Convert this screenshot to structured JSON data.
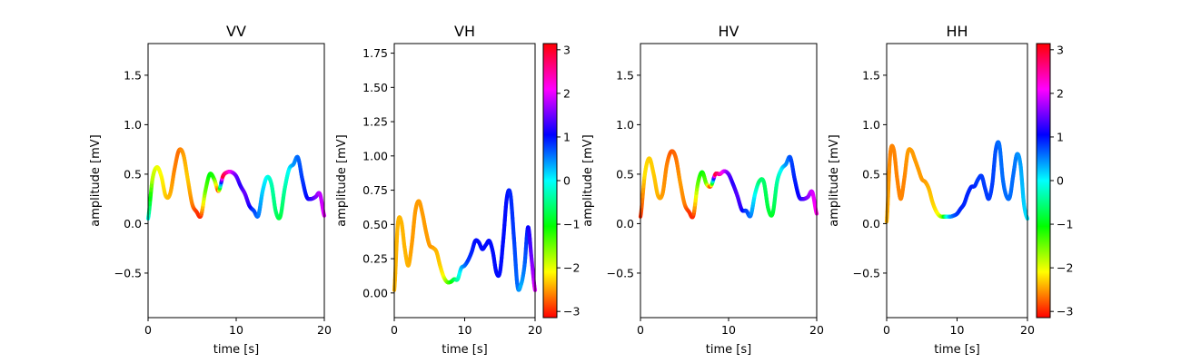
{
  "chart_data": [
    {
      "type": "line",
      "title": "VV",
      "xlabel": "time [s]",
      "ylabel": "amplitude [mV]",
      "xlim": [
        0,
        20
      ],
      "ylim": [
        -0.95,
        1.82
      ],
      "xticks": [
        "0",
        "10",
        "20"
      ],
      "yticks": [
        "−0.5",
        "0.0",
        "0.5",
        "1.0",
        "1.5"
      ],
      "colorbar": false,
      "x": [
        0,
        0.5,
        1,
        1.5,
        2,
        2.5,
        3,
        3.5,
        4,
        4.5,
        5,
        5.5,
        6,
        6.5,
        7,
        7.5,
        8,
        8.5,
        9,
        9.5,
        10,
        10.5,
        11,
        11.5,
        12,
        12.5,
        13,
        13.5,
        14,
        14.5,
        15,
        15.5,
        16,
        16.5,
        17,
        17.5,
        18,
        18.5,
        19,
        19.5,
        20
      ],
      "y": [
        0.05,
        0.45,
        0.57,
        0.48,
        0.28,
        0.3,
        0.55,
        0.74,
        0.7,
        0.45,
        0.2,
        0.12,
        0.08,
        0.33,
        0.5,
        0.45,
        0.33,
        0.48,
        0.52,
        0.52,
        0.48,
        0.38,
        0.3,
        0.18,
        0.13,
        0.08,
        0.33,
        0.47,
        0.4,
        0.12,
        0.07,
        0.35,
        0.55,
        0.6,
        0.67,
        0.45,
        0.27,
        0.25,
        0.27,
        0.3,
        0.08
      ],
      "phase": [
        0,
        -1.8,
        -2.0,
        -2.1,
        -2.3,
        -2.4,
        -2.6,
        -2.7,
        -2.5,
        -2.3,
        -2.6,
        -2.9,
        -3.0,
        -1.5,
        -1.0,
        -1.2,
        -3.0,
        3.0,
        2.5,
        2.0,
        1.5,
        1.2,
        1.5,
        1.2,
        0.8,
        0.6,
        0.2,
        0.0,
        -0.3,
        -0.6,
        -0.8,
        -0.4,
        0.0,
        0.4,
        0.6,
        0.8,
        1.0,
        1.2,
        1.5,
        1.8,
        2.0
      ]
    },
    {
      "type": "line",
      "title": "VH",
      "xlabel": "time [s]",
      "ylabel": "amplitude [mV]",
      "xlim": [
        0,
        20
      ],
      "ylim": [
        -0.18,
        1.82
      ],
      "xticks": [
        "0",
        "10",
        "20"
      ],
      "yticks": [
        "0.00",
        "0.25",
        "0.50",
        "0.75",
        "1.00",
        "1.25",
        "1.50",
        "1.75"
      ],
      "colorbar": true,
      "x": [
        0,
        0.5,
        1,
        1.5,
        2,
        2.5,
        3,
        3.5,
        4,
        4.5,
        5,
        5.5,
        6,
        6.5,
        7,
        7.5,
        8,
        8.5,
        9,
        9.5,
        10,
        10.5,
        11,
        11.5,
        12,
        12.5,
        13,
        13.5,
        14,
        14.5,
        15,
        15.5,
        16,
        16.5,
        17,
        17.5,
        18,
        18.5,
        19,
        19.5,
        20
      ],
      "y": [
        0.02,
        0.5,
        0.52,
        0.32,
        0.2,
        0.36,
        0.6,
        0.67,
        0.58,
        0.45,
        0.35,
        0.33,
        0.3,
        0.2,
        0.12,
        0.08,
        0.08,
        0.1,
        0.1,
        0.18,
        0.2,
        0.24,
        0.3,
        0.38,
        0.37,
        0.32,
        0.35,
        0.38,
        0.3,
        0.15,
        0.15,
        0.4,
        0.7,
        0.72,
        0.4,
        0.05,
        0.06,
        0.2,
        0.48,
        0.25,
        0.02
      ],
      "phase": [
        -2.4,
        -2.4,
        -2.4,
        -2.4,
        -2.4,
        -2.5,
        -2.5,
        -2.5,
        -2.5,
        -2.5,
        -2.5,
        -2.5,
        -2.4,
        -2.3,
        -2.1,
        -1.6,
        -1.2,
        -0.8,
        -0.4,
        0.2,
        0.5,
        0.8,
        0.9,
        1.0,
        1.0,
        1.0,
        1.0,
        1.0,
        1.0,
        1.0,
        1.0,
        1.0,
        1.0,
        0.9,
        0.8,
        0.6,
        0.3,
        0.6,
        1.0,
        1.5,
        2.0
      ]
    },
    {
      "type": "line",
      "title": "HV",
      "xlabel": "time [s]",
      "ylabel": "amplitude [mV]",
      "xlim": [
        0,
        20
      ],
      "ylim": [
        -0.95,
        1.82
      ],
      "xticks": [
        "0",
        "10",
        "20"
      ],
      "yticks": [
        "−0.5",
        "0.0",
        "0.5",
        "1.0",
        "1.5"
      ],
      "colorbar": false,
      "x": [
        0,
        0.5,
        1,
        1.5,
        2,
        2.5,
        3,
        3.5,
        4,
        4.5,
        5,
        5.5,
        6,
        6.5,
        7,
        7.5,
        8,
        8.5,
        9,
        9.5,
        10,
        10.5,
        11,
        11.5,
        12,
        12.5,
        13,
        13.5,
        14,
        14.5,
        15,
        15.5,
        16,
        16.5,
        17,
        17.5,
        18,
        18.5,
        19,
        19.5,
        20
      ],
      "y": [
        0.07,
        0.5,
        0.66,
        0.5,
        0.28,
        0.3,
        0.6,
        0.73,
        0.67,
        0.42,
        0.2,
        0.12,
        0.08,
        0.4,
        0.52,
        0.4,
        0.38,
        0.5,
        0.5,
        0.53,
        0.5,
        0.4,
        0.28,
        0.14,
        0.13,
        0.08,
        0.3,
        0.43,
        0.42,
        0.15,
        0.1,
        0.42,
        0.55,
        0.6,
        0.67,
        0.45,
        0.27,
        0.25,
        0.27,
        0.32,
        0.1
      ],
      "phase": [
        -3.0,
        -2.2,
        -2.3,
        -2.3,
        -2.4,
        -2.5,
        -2.6,
        -2.8,
        -2.7,
        -2.5,
        -2.6,
        -2.9,
        -3.0,
        -1.5,
        -1.0,
        -1.5,
        -3.0,
        3.0,
        2.5,
        2.0,
        1.5,
        1.2,
        1.4,
        1.2,
        0.8,
        0.6,
        0.0,
        -0.6,
        -0.6,
        -0.8,
        -0.9,
        -0.4,
        0.0,
        0.4,
        0.7,
        0.9,
        1.1,
        1.3,
        1.6,
        1.9,
        2.2
      ]
    },
    {
      "type": "line",
      "title": "HH",
      "xlabel": "time [s]",
      "ylabel": "amplitude [mV]",
      "xlim": [
        0,
        20
      ],
      "ylim": [
        -0.95,
        1.82
      ],
      "xticks": [
        "0",
        "10",
        "20"
      ],
      "yticks": [
        "−0.5",
        "0.0",
        "0.5",
        "1.0",
        "1.5"
      ],
      "colorbar": true,
      "x": [
        0,
        0.5,
        1,
        1.5,
        2,
        2.5,
        3,
        3.5,
        4,
        4.5,
        5,
        5.5,
        6,
        6.5,
        7,
        7.5,
        8,
        8.5,
        9,
        9.5,
        10,
        10.5,
        11,
        11.5,
        12,
        12.5,
        13,
        13.5,
        14,
        14.5,
        15,
        15.5,
        16,
        16.5,
        17,
        17.5,
        18,
        18.5,
        19,
        19.5,
        20
      ],
      "y": [
        0.02,
        0.7,
        0.75,
        0.45,
        0.25,
        0.45,
        0.72,
        0.74,
        0.65,
        0.55,
        0.45,
        0.42,
        0.35,
        0.22,
        0.13,
        0.08,
        0.07,
        0.07,
        0.07,
        0.08,
        0.1,
        0.15,
        0.2,
        0.3,
        0.37,
        0.38,
        0.45,
        0.48,
        0.35,
        0.25,
        0.4,
        0.75,
        0.8,
        0.45,
        0.28,
        0.27,
        0.5,
        0.7,
        0.6,
        0.2,
        0.05
      ],
      "phase": [
        -2.4,
        -2.6,
        -2.6,
        -2.6,
        -2.6,
        -2.6,
        -2.5,
        -2.5,
        -2.5,
        -2.5,
        -2.5,
        -2.5,
        -2.4,
        -2.3,
        -2.2,
        -2.0,
        -1.5,
        -0.3,
        0.3,
        0.6,
        0.8,
        0.9,
        0.9,
        0.9,
        0.9,
        0.9,
        0.8,
        0.8,
        0.8,
        0.8,
        0.8,
        0.7,
        0.6,
        0.6,
        0.6,
        0.6,
        0.6,
        0.5,
        0.4,
        0.2,
        0.1
      ]
    }
  ],
  "colorbars": {
    "ticks": [
      "3",
      "2",
      "1",
      "0",
      "−1",
      "−2",
      "−3"
    ],
    "range": [
      -3.1416,
      3.1416
    ],
    "colormap": "hsv"
  }
}
